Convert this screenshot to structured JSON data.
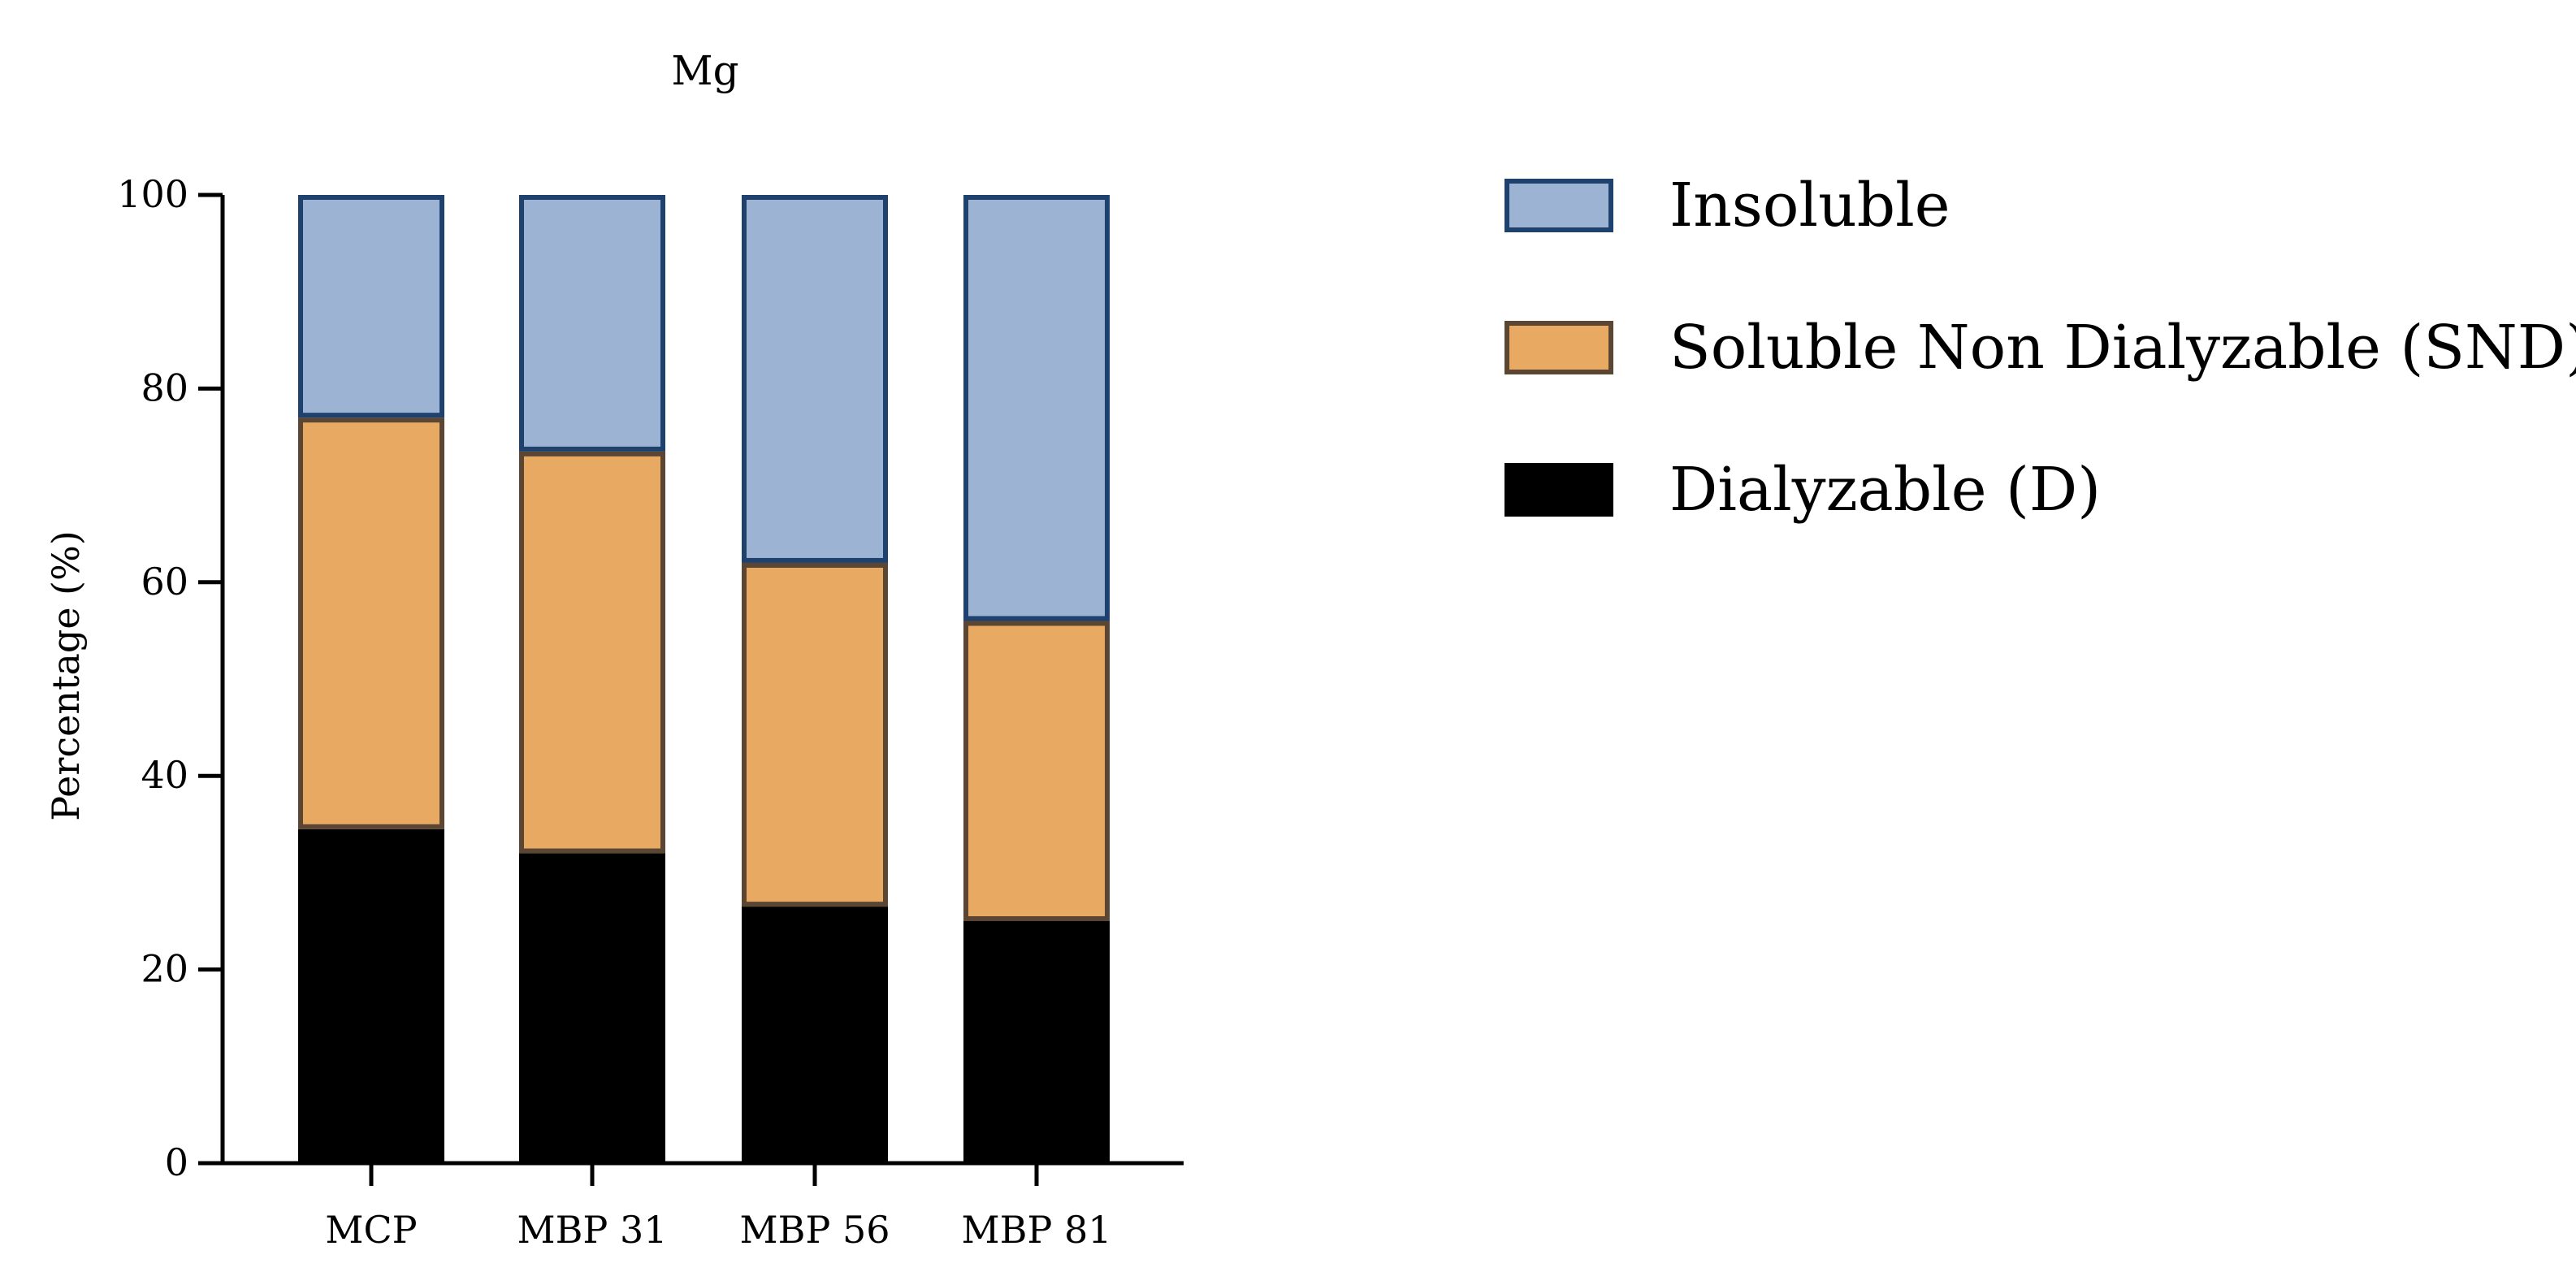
{
  "chart_data": {
    "type": "bar",
    "stacked": true,
    "title": "Mg",
    "xlabel": "",
    "ylabel": "Percentage (%)",
    "ylim": [
      0,
      100
    ],
    "yticks": [
      0,
      20,
      40,
      60,
      80,
      100
    ],
    "categories": [
      "MCP",
      "MBP 31",
      "MBP 56",
      "MBP 81"
    ],
    "series": [
      {
        "key": "dialyzable",
        "name": "Dialyzable (D)",
        "values": [
          34.5,
          32,
          26.5,
          25
        ],
        "fill": "#000000",
        "stroke": "#000000"
      },
      {
        "key": "snd",
        "name": "Soluble Non Dialyzable (SND)",
        "values": [
          42.5,
          41.5,
          35.5,
          31
        ],
        "fill": "#e8a962",
        "stroke": "#5a4632"
      },
      {
        "key": "insoluble",
        "name": "Insoluble",
        "values": [
          23,
          26.5,
          38,
          44
        ],
        "fill": "#9db3d3",
        "stroke": "#1e416e"
      }
    ],
    "legend_order": [
      "insoluble",
      "snd",
      "dialyzable"
    ],
    "legend_placement": "right",
    "grid": false
  }
}
